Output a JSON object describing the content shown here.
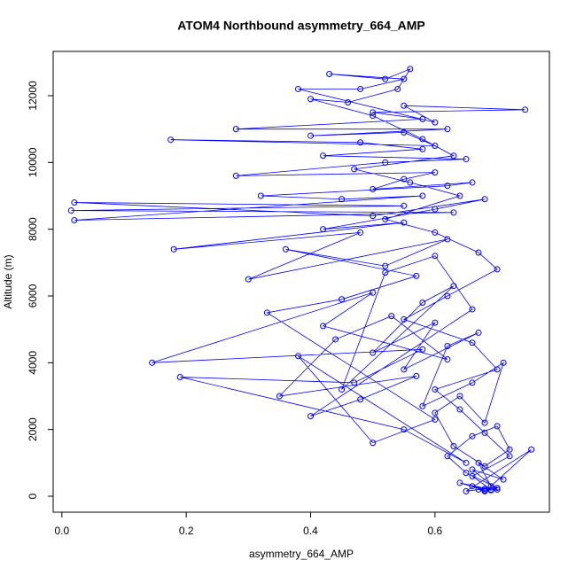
{
  "chart_data": {
    "type": "scatter-line",
    "title": "ATOM4 Northbound asymmetry_664_AMP",
    "x_label": "asymmetry_664_AMP",
    "y_label": "Altitude (m)",
    "color": "#0000ff",
    "xlim": [
      -0.014,
      0.784
    ],
    "ylim": [
      -478,
      13327
    ],
    "xticks": [
      {
        "value": 0,
        "label": "0.0"
      },
      0.2,
      0.4,
      0.6
    ],
    "yticks": [
      0,
      2000,
      4000,
      6000,
      8000,
      10000,
      12000
    ],
    "x": [
      0.67,
      0.68,
      0.66,
      0.69,
      0.7,
      0.65,
      0.62,
      0.66,
      0.7,
      0.72,
      0.68,
      0.63,
      0.6,
      0.64,
      0.68,
      0.71,
      0.66,
      0.58,
      0.62,
      0.67,
      0.55,
      0.6,
      0.5,
      0.58,
      0.63,
      0.45,
      0.52,
      0.6,
      0.66,
      0.4,
      0.48,
      0.57,
      0.35,
      0.44,
      0.53,
      0.62,
      0.42,
      0.5,
      0.145,
      0.58,
      0.47,
      0.19,
      0.55,
      0.65,
      0.38,
      0.5,
      0.6,
      0.33,
      0.45,
      0.57,
      0.36,
      0.52,
      0.62,
      0.3,
      0.48,
      0.18,
      0.55,
      0.42,
      0.6,
      0.68,
      0.5,
      0.02,
      0.55,
      0.015,
      0.63,
      0.02,
      0.58,
      0.45,
      0.32,
      0.62,
      0.66,
      0.5,
      0.55,
      0.6,
      0.28,
      0.52,
      0.65,
      0.42,
      0.58,
      0.48,
      0.175,
      0.6,
      0.55,
      0.4,
      0.62,
      0.28,
      0.58,
      0.5,
      0.745,
      0.55,
      0.6,
      0.38,
      0.48,
      0.55,
      0.43,
      0.52,
      0.56,
      0.54,
      0.46,
      0.4,
      0.5,
      0.58,
      0.63,
      0.47,
      0.56,
      0.64,
      0.52,
      0.6,
      0.67,
      0.7,
      0.62,
      0.55,
      0.66,
      0.7,
      0.6,
      0.64,
      0.68,
      0.72,
      0.66,
      0.69,
      0.64,
      0.68,
      0.7,
      0.66,
      0.71,
      0.67,
      0.69,
      0.755,
      0.65,
      0.68
    ],
    "values": [
      200,
      150,
      300,
      180,
      250,
      700,
      1200,
      1800,
      2100,
      1400,
      900,
      1500,
      2500,
      3000,
      2200,
      4000,
      3400,
      2700,
      4500,
      4900,
      3800,
      5200,
      4300,
      5800,
      6300,
      3200,
      6700,
      7200,
      5600,
      2400,
      2900,
      3600,
      3000,
      4700,
      5400,
      4100,
      5100,
      6100,
      4000,
      4400,
      3400,
      3570,
      2000,
      1000,
      4200,
      1600,
      2300,
      5500,
      5900,
      6600,
      7400,
      6900,
      7700,
      6500,
      7900,
      7400,
      8200,
      8000,
      8600,
      8900,
      8400,
      8800,
      8700,
      8560,
      8500,
      8270,
      9000,
      8900,
      9000,
      9300,
      9400,
      9200,
      9500,
      9700,
      9600,
      10000,
      10100,
      10200,
      10400,
      10600,
      10680,
      10500,
      10900,
      10800,
      11000,
      11000,
      11300,
      11500,
      11580,
      11700,
      11200,
      12200,
      12200,
      12500,
      12650,
      12500,
      12800,
      12200,
      11800,
      11900,
      11400,
      10700,
      10200,
      9800,
      9400,
      9000,
      8300,
      7900,
      7300,
      6800,
      6000,
      5300,
      4600,
      3800,
      3200,
      2600,
      1900,
      1200,
      600,
      200,
      400,
      180,
      200,
      800,
      500,
      1000,
      300,
      1400,
      150,
      220
    ]
  }
}
